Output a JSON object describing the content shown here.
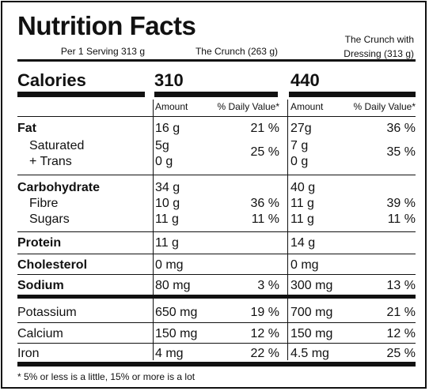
{
  "title": "Nutrition Facts",
  "header": {
    "per_serving": "Per 1 Serving 313 g",
    "col1_title": "The Crunch  (263 g)",
    "col2_title_line1": "The Crunch with",
    "col2_title_line2": "Dressing  (313 g)"
  },
  "calories": {
    "label": "Calories",
    "col1": "310",
    "col2": "440"
  },
  "column_headers": {
    "amount": "Amount",
    "daily_value": "% Daily Value*"
  },
  "rows": {
    "fat": {
      "label": "Fat",
      "c1_amt": "16 g",
      "c1_dv": "21 %",
      "c2_amt": "27g",
      "c2_dv": "36 %"
    },
    "saturated": {
      "label": "Saturated",
      "c1_amt": "5g",
      "c2_amt": "7 g"
    },
    "trans": {
      "label": "+ Trans",
      "c1_amt": "0 g",
      "c2_amt": "0 g"
    },
    "sat_trans_dv": {
      "c1_dv": "25 %",
      "c2_dv": "35 %"
    },
    "carbohydrate": {
      "label": "Carbohydrate",
      "c1_amt": "34 g",
      "c2_amt": "40 g"
    },
    "fibre": {
      "label": "Fibre",
      "c1_amt": "10 g",
      "c1_dv": "36 %",
      "c2_amt": "11 g",
      "c2_dv": "39 %"
    },
    "sugars": {
      "label": "Sugars",
      "c1_amt": "11 g",
      "c1_dv": "11 %",
      "c2_amt": "11 g",
      "c2_dv": "11 %"
    },
    "protein": {
      "label": "Protein",
      "c1_amt": "11 g",
      "c2_amt": "14 g"
    },
    "cholesterol": {
      "label": "Cholesterol",
      "c1_amt": "0 mg",
      "c2_amt": "0 mg"
    },
    "sodium": {
      "label": "Sodium",
      "c1_amt": "80 mg",
      "c1_dv": "3 %",
      "c2_amt": "300 mg",
      "c2_dv": "13 %"
    },
    "potassium": {
      "label": "Potassium",
      "c1_amt": "650 mg",
      "c1_dv": "19 %",
      "c2_amt": "700 mg",
      "c2_dv": "21 %"
    },
    "calcium": {
      "label": "Calcium",
      "c1_amt": "150 mg",
      "c1_dv": "12 %",
      "c2_amt": "150 mg",
      "c2_dv": "12 %"
    },
    "iron": {
      "label": "Iron",
      "c1_amt": "4 mg",
      "c1_dv": "22 %",
      "c2_amt": "4.5 mg",
      "c2_dv": "25 %"
    }
  },
  "footnote": "* 5% or less is a little, 15%  or more is a lot"
}
